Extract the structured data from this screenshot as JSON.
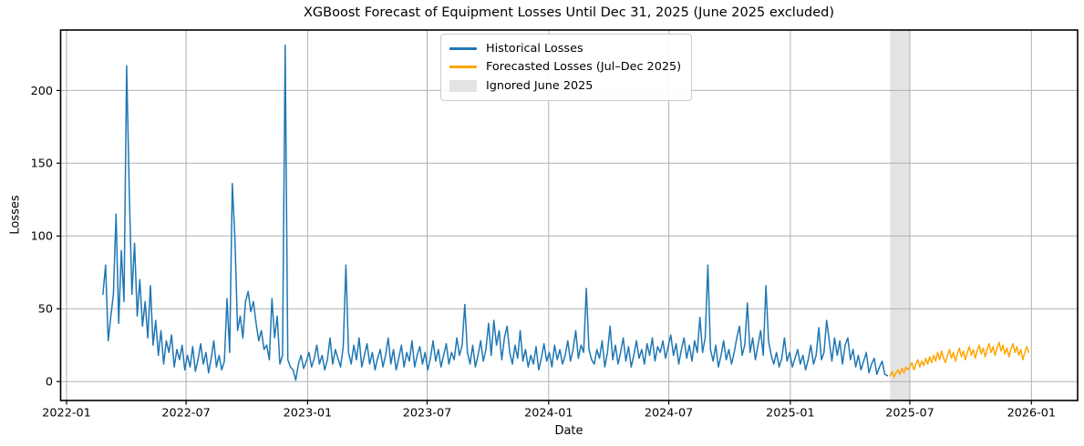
{
  "figure": {
    "title": "XGBoost Forecast of Equipment Losses Until Dec 31, 2025 (June 2025 excluded)",
    "xlabel": "Date",
    "ylabel": "Losses"
  },
  "legend": {
    "entries": [
      {
        "label": "Historical Losses",
        "type": "line",
        "color": "#1f77b4"
      },
      {
        "label": "Forecasted Losses (Jul–Dec 2025)",
        "type": "line",
        "color": "#ffa500"
      },
      {
        "label": "Ignored June 2025",
        "type": "patch",
        "color": "#e3e3e3"
      }
    ]
  },
  "chart_data": {
    "type": "line",
    "title": "XGBoost Forecast of Equipment Losses Until Dec 31, 2025 (June 2025 excluded)",
    "xlabel": "Date",
    "ylabel": "Losses",
    "x_unit": "days since 2022-01-01",
    "xlim": [
      -9,
      1531
    ],
    "ylim": [
      -13,
      241.5
    ],
    "grid": true,
    "grid_color": "#b0b0b0",
    "legend_position": "upper center",
    "x_ticks": [
      {
        "day": 0,
        "label": "2022-01"
      },
      {
        "day": 181,
        "label": "2022-07"
      },
      {
        "day": 365,
        "label": "2023-01"
      },
      {
        "day": 546,
        "label": "2023-07"
      },
      {
        "day": 730,
        "label": "2024-01"
      },
      {
        "day": 912,
        "label": "2024-07"
      },
      {
        "day": 1096,
        "label": "2025-01"
      },
      {
        "day": 1277,
        "label": "2025-07"
      },
      {
        "day": 1461,
        "label": "2026-01"
      }
    ],
    "y_ticks": [
      0,
      50,
      100,
      150,
      200
    ],
    "ignored_band": {
      "start_day": 1247,
      "end_day": 1277,
      "label": "Ignored June 2025",
      "color": "#e3e3e3"
    },
    "series": [
      {
        "name": "Historical Losses",
        "slug": "historical-losses-line",
        "color": "#1f77b4",
        "start_day": 55,
        "step_days": 4,
        "values": [
          60,
          80,
          28,
          45,
          60,
          115,
          40,
          90,
          55,
          217,
          130,
          60,
          95,
          45,
          70,
          38,
          55,
          30,
          66,
          25,
          42,
          18,
          35,
          12,
          28,
          20,
          32,
          10,
          22,
          15,
          25,
          8,
          18,
          10,
          24,
          7,
          15,
          26,
          12,
          20,
          6,
          16,
          28,
          10,
          18,
          8,
          14,
          57,
          20,
          136,
          98,
          35,
          45,
          30,
          55,
          62,
          48,
          55,
          40,
          28,
          35,
          22,
          25,
          15,
          57,
          30,
          45,
          12,
          18,
          231,
          15,
          10,
          8,
          1,
          12,
          18,
          9,
          14,
          20,
          10,
          16,
          25,
          12,
          18,
          8,
          15,
          30,
          12,
          22,
          16,
          10,
          24,
          80,
          20,
          12,
          25,
          15,
          30,
          10,
          18,
          26,
          12,
          20,
          8,
          16,
          22,
          10,
          18,
          30,
          12,
          22,
          8,
          16,
          25,
          10,
          20,
          14,
          28,
          10,
          18,
          24,
          12,
          20,
          8,
          16,
          28,
          14,
          22,
          10,
          18,
          26,
          12,
          20,
          15,
          30,
          18,
          25,
          53,
          20,
          12,
          25,
          10,
          18,
          28,
          14,
          22,
          40,
          18,
          42,
          25,
          35,
          15,
          30,
          38,
          20,
          12,
          25,
          16,
          35,
          14,
          22,
          10,
          18,
          12,
          24,
          8,
          16,
          26,
          14,
          20,
          10,
          25,
          15,
          22,
          12,
          18,
          28,
          14,
          22,
          35,
          16,
          25,
          20,
          64,
          22,
          15,
          12,
          22,
          16,
          28,
          10,
          20,
          38,
          15,
          25,
          12,
          20,
          30,
          14,
          24,
          10,
          18,
          28,
          16,
          22,
          12,
          26,
          18,
          30,
          14,
          24,
          20,
          28,
          16,
          24,
          32,
          18,
          26,
          12,
          22,
          30,
          16,
          25,
          14,
          28,
          20,
          44,
          20,
          30,
          80,
          22,
          14,
          25,
          10,
          18,
          28,
          15,
          22,
          12,
          20,
          30,
          38,
          18,
          25,
          54,
          20,
          30,
          15,
          25,
          35,
          18,
          66,
          28,
          18,
          12,
          20,
          10,
          16,
          30,
          14,
          20,
          10,
          16,
          22,
          12,
          18,
          8,
          15,
          25,
          12,
          18,
          37,
          15,
          20,
          42,
          28,
          14,
          30,
          18,
          28,
          12,
          25,
          30,
          15,
          22,
          10,
          18,
          8,
          14,
          20,
          6,
          12,
          16,
          5,
          10,
          14,
          5,
          4
        ]
      },
      {
        "name": "Forecasted Losses (Jul–Dec 2025)",
        "slug": "forecast-losses-line",
        "color": "#ffa500",
        "start_day": 1247,
        "step_days": 3,
        "values": [
          4,
          7,
          3,
          6,
          8,
          5,
          9,
          6,
          10,
          8,
          10,
          13,
          8,
          12,
          15,
          10,
          14,
          11,
          16,
          12,
          17,
          13,
          18,
          14,
          20,
          15,
          21,
          16,
          13,
          18,
          22,
          16,
          20,
          14,
          19,
          23,
          17,
          21,
          15,
          20,
          24,
          18,
          22,
          16,
          21,
          25,
          19,
          23,
          17,
          22,
          26,
          20,
          24,
          18,
          23,
          27,
          21,
          25,
          19,
          23,
          17,
          22,
          26,
          20,
          24,
          18,
          22,
          15,
          20,
          24,
          20
        ]
      }
    ]
  }
}
